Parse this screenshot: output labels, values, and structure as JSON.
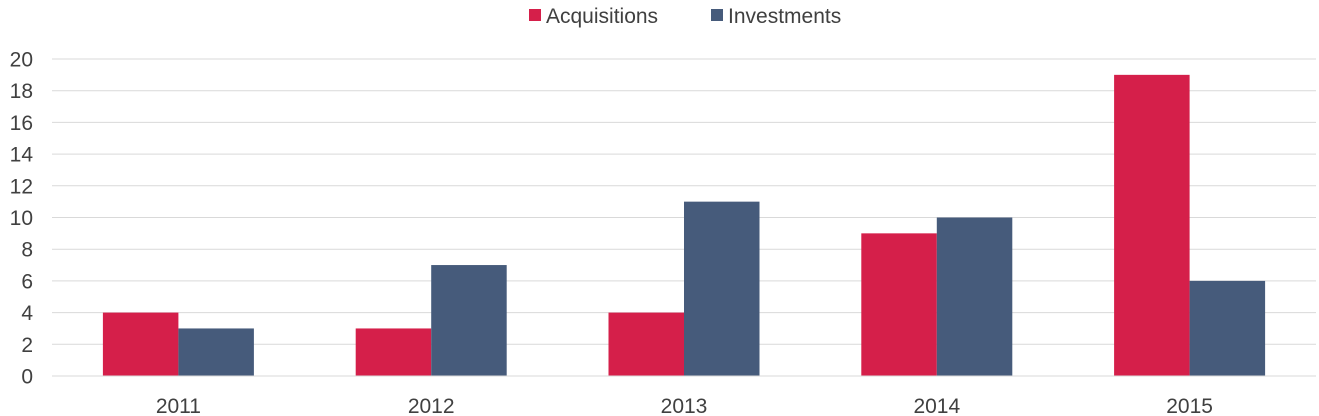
{
  "chart_data": {
    "type": "bar",
    "categories": [
      "2011",
      "2012",
      "2013",
      "2014",
      "2015"
    ],
    "series": [
      {
        "name": "Acquisitions",
        "color": "#d51f4a",
        "values": [
          4,
          3,
          4,
          9,
          19
        ]
      },
      {
        "name": "Investments",
        "color": "#465b7b",
        "values": [
          3,
          7,
          11,
          10,
          6
        ]
      }
    ],
    "ylim": [
      0,
      20
    ],
    "yticks": [
      0,
      2,
      4,
      6,
      8,
      10,
      12,
      14,
      16,
      18,
      20
    ],
    "grid": true,
    "legend_position": "top-center"
  }
}
